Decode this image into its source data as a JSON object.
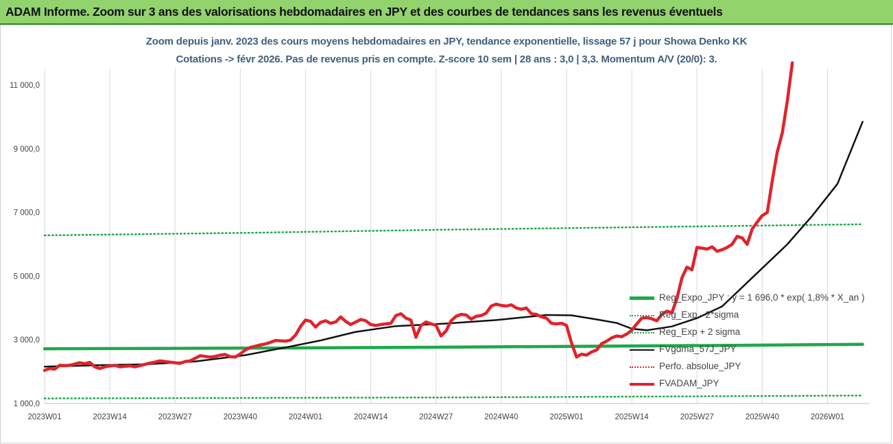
{
  "header": {
    "banner_title": "ADAM Informe. Zoom sur 3 ans des valorisations hebdomadaires en JPY et des courbes de tendances sans les revenus éventuels"
  },
  "chart_data": {
    "type": "line",
    "title": "Zoom depuis janv. 2023 des cours moyens hebdomadaires en JPY, tendance exponentielle, lissage 57 j pour Showa Denko KK",
    "subtitle": "Cotations -> févr 2026.  Pas de revenus pris en compte. Z-score 10 sem | 28 ans : 3,0 | 3,3. Momentum A/V (20/0): 3.",
    "xlabel": "",
    "ylabel": "",
    "y_ticks": [
      "1 000,0",
      "3 000,0",
      "5 000,0",
      "7 000,0",
      "9 000,0",
      "11 000,0"
    ],
    "y_tick_values": [
      1000,
      3000,
      5000,
      7000,
      9000,
      11000
    ],
    "ylim": [
      1000,
      12000
    ],
    "x_ticks": [
      "2023W01",
      "2023W14",
      "2023W27",
      "2023W40",
      "2024W01",
      "2024W14",
      "2024W27",
      "2024W40",
      "2025W01",
      "2025W14",
      "2025W27",
      "2025W40",
      "2026W01"
    ],
    "x_tick_weeks": [
      0,
      13,
      26,
      39,
      52,
      65,
      78,
      91,
      104,
      117,
      130,
      143,
      156
    ],
    "xlim": [
      0,
      164
    ],
    "grid": "vertical",
    "legend_placement": "bottom-right",
    "series": [
      {
        "name": "Reg_Expo_JPY : y = 1 696,0 * exp( 1,8% * X_an )",
        "color": "#1fa84a",
        "style": "solid-thick",
        "points": [
          [
            0,
            2720
          ],
          [
            40,
            2740
          ],
          [
            80,
            2770
          ],
          [
            110,
            2800
          ],
          [
            140,
            2830
          ],
          [
            163,
            2860
          ]
        ]
      },
      {
        "name": "Reg_Exp - 2*sigma",
        "color": "#1fa84a",
        "style": "dotted",
        "points": [
          [
            0,
            1160
          ],
          [
            80,
            1190
          ],
          [
            163,
            1250
          ]
        ]
      },
      {
        "name": "Reg_Exp + 2 sigma",
        "color": "#1fa84a",
        "style": "dotted",
        "points": [
          [
            0,
            6280
          ],
          [
            40,
            6360
          ],
          [
            80,
            6460
          ],
          [
            120,
            6540
          ],
          [
            163,
            6630
          ]
        ]
      },
      {
        "name": "FVgdma_57J_JPY",
        "color": "#111111",
        "style": "solid",
        "points": [
          [
            0,
            2160
          ],
          [
            10,
            2200
          ],
          [
            20,
            2230
          ],
          [
            30,
            2320
          ],
          [
            40,
            2520
          ],
          [
            48,
            2760
          ],
          [
            55,
            2980
          ],
          [
            62,
            3250
          ],
          [
            70,
            3430
          ],
          [
            80,
            3510
          ],
          [
            90,
            3620
          ],
          [
            100,
            3780
          ],
          [
            105,
            3770
          ],
          [
            110,
            3640
          ],
          [
            114,
            3530
          ],
          [
            117,
            3350
          ],
          [
            120,
            3300
          ],
          [
            125,
            3420
          ],
          [
            130,
            3680
          ],
          [
            135,
            4050
          ],
          [
            138,
            4500
          ],
          [
            142,
            5100
          ],
          [
            148,
            6000
          ],
          [
            153,
            6900
          ],
          [
            158,
            7900
          ],
          [
            163,
            9850
          ]
        ]
      },
      {
        "name": "Perfo. absolue_JPY",
        "color": "#e0232b",
        "style": "dotted",
        "points": []
      },
      {
        "name": "FVADAM_JPY",
        "color": "#e0232b",
        "style": "solid-thick",
        "points": [
          [
            0,
            2040
          ],
          [
            1,
            2100
          ],
          [
            2,
            2080
          ],
          [
            3,
            2200
          ],
          [
            4,
            2190
          ],
          [
            5,
            2200
          ],
          [
            6,
            2240
          ],
          [
            7,
            2280
          ],
          [
            8,
            2250
          ],
          [
            9,
            2290
          ],
          [
            10,
            2150
          ],
          [
            11,
            2100
          ],
          [
            12,
            2150
          ],
          [
            13,
            2180
          ],
          [
            14,
            2200
          ],
          [
            15,
            2150
          ],
          [
            16,
            2170
          ],
          [
            17,
            2180
          ],
          [
            18,
            2150
          ],
          [
            19,
            2190
          ],
          [
            20,
            2230
          ],
          [
            21,
            2270
          ],
          [
            22,
            2300
          ],
          [
            23,
            2340
          ],
          [
            24,
            2320
          ],
          [
            25,
            2300
          ],
          [
            26,
            2280
          ],
          [
            27,
            2260
          ],
          [
            28,
            2320
          ],
          [
            29,
            2340
          ],
          [
            30,
            2420
          ],
          [
            31,
            2500
          ],
          [
            32,
            2480
          ],
          [
            33,
            2460
          ],
          [
            34,
            2480
          ],
          [
            35,
            2520
          ],
          [
            36,
            2540
          ],
          [
            37,
            2470
          ],
          [
            38,
            2460
          ],
          [
            39,
            2560
          ],
          [
            40,
            2680
          ],
          [
            41,
            2760
          ],
          [
            42,
            2800
          ],
          [
            43,
            2840
          ],
          [
            44,
            2870
          ],
          [
            45,
            2920
          ],
          [
            46,
            2980
          ],
          [
            47,
            2970
          ],
          [
            48,
            2960
          ],
          [
            49,
            2990
          ],
          [
            50,
            3150
          ],
          [
            51,
            3420
          ],
          [
            52,
            3620
          ],
          [
            53,
            3580
          ],
          [
            54,
            3400
          ],
          [
            55,
            3550
          ],
          [
            56,
            3600
          ],
          [
            57,
            3520
          ],
          [
            58,
            3560
          ],
          [
            59,
            3720
          ],
          [
            60,
            3580
          ],
          [
            61,
            3480
          ],
          [
            62,
            3560
          ],
          [
            63,
            3640
          ],
          [
            64,
            3600
          ],
          [
            65,
            3480
          ],
          [
            66,
            3450
          ],
          [
            67,
            3480
          ],
          [
            68,
            3500
          ],
          [
            69,
            3520
          ],
          [
            70,
            3760
          ],
          [
            71,
            3820
          ],
          [
            72,
            3680
          ],
          [
            73,
            3620
          ],
          [
            74,
            3080
          ],
          [
            75,
            3450
          ],
          [
            76,
            3560
          ],
          [
            77,
            3500
          ],
          [
            78,
            3460
          ],
          [
            79,
            3120
          ],
          [
            80,
            3280
          ],
          [
            81,
            3600
          ],
          [
            82,
            3740
          ],
          [
            83,
            3800
          ],
          [
            84,
            3780
          ],
          [
            85,
            3650
          ],
          [
            86,
            3740
          ],
          [
            87,
            3760
          ],
          [
            88,
            3840
          ],
          [
            89,
            4060
          ],
          [
            90,
            4120
          ],
          [
            91,
            4080
          ],
          [
            92,
            4060
          ],
          [
            93,
            4100
          ],
          [
            94,
            4000
          ],
          [
            95,
            3960
          ],
          [
            96,
            4000
          ],
          [
            97,
            3820
          ],
          [
            98,
            3800
          ],
          [
            99,
            3720
          ],
          [
            100,
            3680
          ],
          [
            101,
            3520
          ],
          [
            102,
            3500
          ],
          [
            103,
            3520
          ],
          [
            104,
            3450
          ],
          [
            105,
            2900
          ],
          [
            106,
            2460
          ],
          [
            107,
            2550
          ],
          [
            108,
            2520
          ],
          [
            109,
            2620
          ],
          [
            110,
            2680
          ],
          [
            111,
            2880
          ],
          [
            112,
            2960
          ],
          [
            113,
            3060
          ],
          [
            114,
            3120
          ],
          [
            115,
            3100
          ],
          [
            116,
            3180
          ],
          [
            117,
            3300
          ],
          [
            118,
            3500
          ],
          [
            119,
            3680
          ],
          [
            120,
            3700
          ],
          [
            121,
            3660
          ],
          [
            122,
            3600
          ],
          [
            123,
            3800
          ],
          [
            124,
            3900
          ],
          [
            125,
            3850
          ],
          [
            126,
            4300
          ],
          [
            127,
            4950
          ],
          [
            128,
            5280
          ],
          [
            129,
            5200
          ],
          [
            130,
            5900
          ],
          [
            131,
            5880
          ],
          [
            132,
            5850
          ],
          [
            133,
            5920
          ],
          [
            134,
            5780
          ],
          [
            135,
            5830
          ],
          [
            136,
            5900
          ],
          [
            137,
            6000
          ],
          [
            138,
            6250
          ],
          [
            139,
            6200
          ],
          [
            140,
            6000
          ],
          [
            141,
            6480
          ],
          [
            142,
            6700
          ],
          [
            143,
            6900
          ],
          [
            144,
            7000
          ],
          [
            145,
            8000
          ],
          [
            146,
            8900
          ],
          [
            147,
            9500
          ],
          [
            148,
            10500
          ],
          [
            149,
            11700
          ]
        ]
      }
    ]
  }
}
